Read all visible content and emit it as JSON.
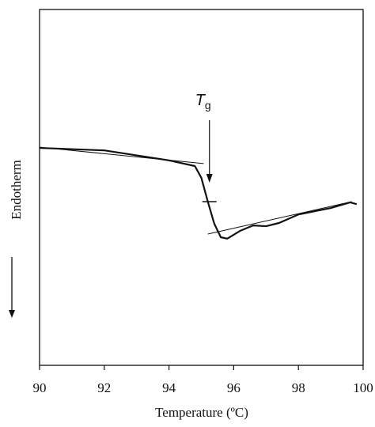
{
  "chart_data": {
    "type": "line",
    "x_label": "Temperature (ºC)",
    "y_label": "Endotherm",
    "xlim": [
      90,
      100
    ],
    "xticks": [
      90,
      92,
      94,
      96,
      98,
      100
    ],
    "ylim": [
      0,
      100
    ],
    "series": [
      {
        "color": "#111111",
        "width": 2.2,
        "x": [
          90,
          92,
          94,
          94.8,
          95,
          95.2,
          95.4,
          95.6,
          95.8,
          96.2,
          96.6,
          97,
          97.4,
          98,
          99,
          99.6,
          99.8
        ],
        "values": [
          61.1,
          60.4,
          57.6,
          56,
          52.7,
          46,
          39.8,
          36,
          35.6,
          37.8,
          39.3,
          39.1,
          40,
          42.4,
          44.2,
          45.8,
          45.3
        ]
      },
      {
        "color": "#111111",
        "width": 1,
        "x": [
          90,
          95.07
        ],
        "values": [
          61.3,
          56.7
        ]
      },
      {
        "color": "#111111",
        "width": 1,
        "x": [
          95.2,
          99.65
        ],
        "values": [
          36.9,
          46
        ]
      }
    ],
    "tg": {
      "label": "T",
      "subscript": "g",
      "x": 95.25,
      "y": 46
    }
  }
}
